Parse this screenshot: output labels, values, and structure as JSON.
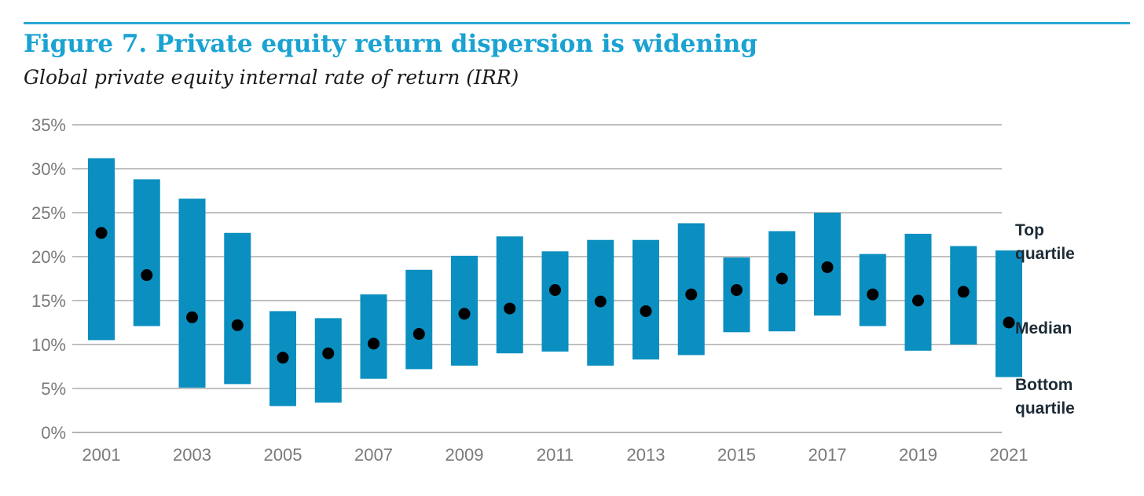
{
  "header": {
    "title": "Figure 7. Private equity return dispersion is widening",
    "subtitle": "Global private equity internal rate of return (IRR)"
  },
  "colors": {
    "bar": "#0a8fc0",
    "dot": "#000000",
    "grid": "#9a9a9a",
    "title": "#1aa3d2"
  },
  "legend": {
    "top_line1": "Top",
    "top_line2": "quartile",
    "median": "Median",
    "bottom_line1": "Bottom",
    "bottom_line2": "quartile"
  },
  "chart_data": {
    "type": "bar",
    "title": "Figure 7. Private equity return dispersion is widening",
    "subtitle": "Global private equity internal rate of return (IRR)",
    "ylim": [
      0,
      35
    ],
    "yticks": [
      "0%",
      "5%",
      "10%",
      "15%",
      "20%",
      "25%",
      "30%",
      "35%"
    ],
    "ytick_values": [
      0,
      5,
      10,
      15,
      20,
      25,
      30,
      35
    ],
    "x_labels_shown": [
      "2001",
      "2003",
      "2005",
      "2007",
      "2009",
      "2011",
      "2013",
      "2015",
      "2017",
      "2019",
      "2021"
    ],
    "categories": [
      "2001",
      "2002",
      "2003",
      "2004",
      "2005",
      "2006",
      "2007",
      "2008",
      "2009",
      "2010",
      "2011",
      "2012",
      "2013",
      "2014",
      "2015",
      "2016",
      "2017",
      "2018",
      "2019",
      "2020",
      "2021"
    ],
    "series": [
      {
        "name": "Top quartile",
        "values": [
          31.2,
          28.8,
          26.6,
          22.7,
          13.8,
          13.0,
          15.7,
          18.5,
          20.1,
          22.3,
          20.6,
          21.9,
          21.9,
          23.8,
          19.9,
          22.9,
          25.0,
          20.3,
          22.6,
          21.2,
          20.7
        ]
      },
      {
        "name": "Median",
        "values": [
          22.7,
          17.9,
          13.1,
          12.2,
          8.5,
          9.0,
          10.1,
          11.2,
          13.5,
          14.1,
          16.2,
          14.9,
          13.8,
          15.7,
          16.2,
          17.5,
          18.8,
          15.7,
          15.0,
          16.0,
          12.5
        ]
      },
      {
        "name": "Bottom quartile",
        "values": [
          10.5,
          12.1,
          5.1,
          5.5,
          3.0,
          3.4,
          6.1,
          7.2,
          7.6,
          9.0,
          9.2,
          7.6,
          8.3,
          8.8,
          11.4,
          11.5,
          13.3,
          12.1,
          9.3,
          10.0,
          6.3
        ]
      }
    ],
    "grid": true
  }
}
